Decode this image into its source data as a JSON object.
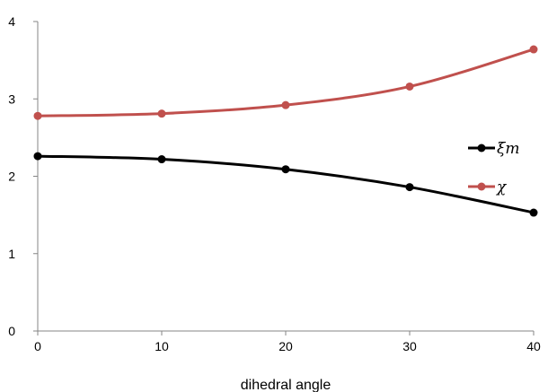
{
  "chart_data": {
    "type": "line",
    "xlabel": "dihedral angle",
    "ylabel": "",
    "x": [
      0,
      10,
      20,
      30,
      40
    ],
    "xlim": [
      0,
      40
    ],
    "ylim": [
      0,
      4
    ],
    "xticks": [
      0,
      10,
      20,
      30,
      40
    ],
    "yticks": [
      0,
      1,
      2,
      3,
      4
    ],
    "grid": false,
    "legend_position": "right",
    "series": [
      {
        "name": "ξm",
        "values": [
          2.26,
          2.22,
          2.09,
          1.86,
          1.53
        ],
        "color": "#000000"
      },
      {
        "name": "χ",
        "values": [
          2.78,
          2.81,
          2.92,
          3.16,
          3.64
        ],
        "color": "#c0504d"
      }
    ]
  }
}
